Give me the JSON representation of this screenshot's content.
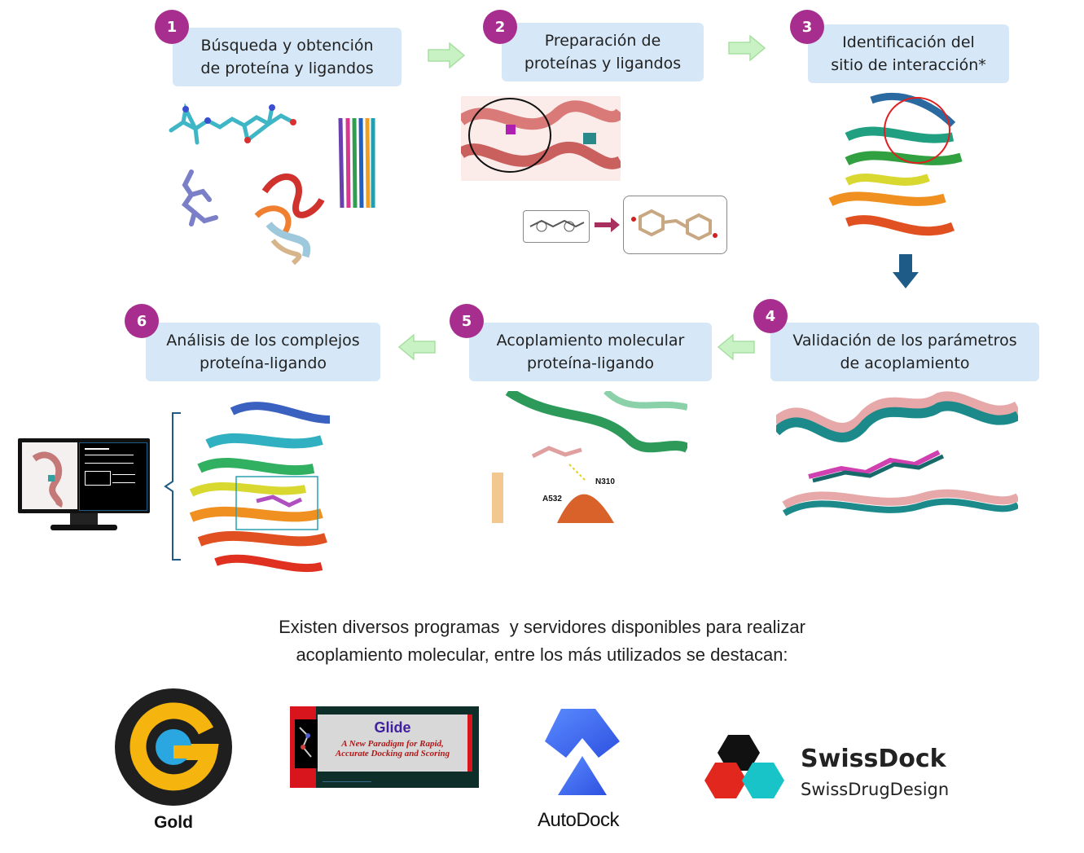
{
  "steps": [
    {
      "number": "1",
      "line1": "Búsqueda y obtención",
      "line2": "de proteína y ligandos"
    },
    {
      "number": "2",
      "line1": "Preparación de",
      "line2": "proteínas y ligandos"
    },
    {
      "number": "3",
      "line1": "Identificación del",
      "line2": "sitio de interacción*"
    },
    {
      "number": "4",
      "line1": "Validación de los parámetros",
      "line2": "de acoplamiento"
    },
    {
      "number": "5",
      "line1": "Acoplamiento molecular",
      "line2": "proteína-ligando"
    },
    {
      "number": "6",
      "line1": "Análisis de los complejos",
      "line2": "proteína-ligando"
    }
  ],
  "illustration_labels": {
    "residue_a": "A532",
    "residue_b": "N310"
  },
  "caption": {
    "line1": "Existen diversos programas  y servidores disponibles para realizar",
    "line2": "acoplamiento molecular, entre los más utilizados se destacan:"
  },
  "logos": {
    "gold": {
      "label": "Gold"
    },
    "glide": {
      "title": "Glide",
      "subtitle1": "A New Paradigm for Rapid,",
      "subtitle2": "Accurate Docking and Scoring"
    },
    "autodock": {
      "label": "AutoDock"
    },
    "swissdock": {
      "title": "SwissDock",
      "subtitle": "SwissDrugDesign"
    }
  },
  "colors": {
    "badge": "#a72e8e",
    "box": "#d6e8f7",
    "arrow_green": "#c9f2c4",
    "arrow_down": "#1e5b86"
  }
}
